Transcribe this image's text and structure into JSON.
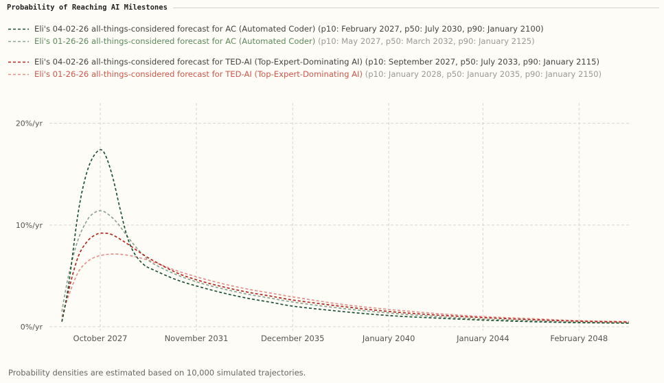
{
  "chart_data": {
    "type": "line",
    "title": "Probability of Reaching AI Milestones",
    "xlabel": "",
    "ylabel": "",
    "x_ticks": [
      {
        "label": "October 2027",
        "value": 2027.75
      },
      {
        "label": "November 2031",
        "value": 2031.83
      },
      {
        "label": "December 2035",
        "value": 2035.92
      },
      {
        "label": "January 2040",
        "value": 2040.0
      },
      {
        "label": "January 2044",
        "value": 2044.0
      },
      {
        "label": "February 2048",
        "value": 2048.08
      }
    ],
    "y_ticks": [
      {
        "label": "0%/yr",
        "value": 0
      },
      {
        "label": "10%/yr",
        "value": 10
      },
      {
        "label": "20%/yr",
        "value": 20
      }
    ],
    "xlim": [
      2026.0,
      2050.2
    ],
    "ylim": [
      0,
      22
    ],
    "grid": true,
    "legend_position": "top-left",
    "series": [
      {
        "name_main": "Eli's 04-02-26 all-things-considered forecast for AC (Automated Coder)",
        "name_detail": " (p10: February 2027, p50: July 2030, p90: January 2100)",
        "color": "#1f5133",
        "dash": "dashed",
        "x": [
          2026.12,
          2026.4,
          2026.8,
          2027.1,
          2027.4,
          2027.75,
          2028.0,
          2028.3,
          2028.6,
          2028.9,
          2029.2,
          2029.6,
          2030.0,
          2031.0,
          2032.0,
          2033.0,
          2034.0,
          2035.0,
          2036.0,
          2038.0,
          2040.0,
          2042.0,
          2044.0,
          2046.0,
          2048.0,
          2050.2
        ],
        "y": [
          0.5,
          4.0,
          11.0,
          14.5,
          16.5,
          17.4,
          16.7,
          14.5,
          11.5,
          8.8,
          7.2,
          6.1,
          5.6,
          4.6,
          3.9,
          3.3,
          2.8,
          2.4,
          2.0,
          1.5,
          1.1,
          0.85,
          0.65,
          0.5,
          0.4,
          0.35
        ]
      },
      {
        "name_main": "Eli's 01-26-26 all-things-considered forecast for AC (Automated Coder)",
        "name_detail": " (p10: May 2027, p50: March 2032, p90: January 2125)",
        "color": "#8ea28c",
        "dash": "dashed",
        "x": [
          2026.12,
          2026.4,
          2026.8,
          2027.2,
          2027.5,
          2027.75,
          2028.0,
          2028.4,
          2028.8,
          2029.2,
          2029.6,
          2030.0,
          2031.0,
          2032.0,
          2033.0,
          2034.0,
          2035.0,
          2036.0,
          2038.0,
          2040.0,
          2042.0,
          2044.0,
          2046.0,
          2048.0,
          2050.2
        ],
        "y": [
          1.5,
          5.0,
          8.5,
          10.5,
          11.2,
          11.4,
          11.2,
          10.4,
          9.2,
          8.0,
          7.0,
          6.2,
          5.1,
          4.3,
          3.7,
          3.2,
          2.8,
          2.4,
          1.8,
          1.35,
          1.0,
          0.75,
          0.6,
          0.45,
          0.35
        ]
      },
      {
        "name_main": "Eli's 04-02-26 all-things-considered forecast for TED-AI (Top-Expert-Dominating AI)",
        "name_detail": " (p10: September 2027, p50: July 2033, p90: January 2115)",
        "color": "#b0261e",
        "dash": "dashed",
        "x": [
          2026.12,
          2026.4,
          2026.8,
          2027.2,
          2027.6,
          2027.9,
          2028.2,
          2028.6,
          2029.0,
          2029.5,
          2030.0,
          2031.0,
          2032.0,
          2033.0,
          2034.0,
          2035.0,
          2036.0,
          2038.0,
          2040.0,
          2042.0,
          2044.0,
          2046.0,
          2048.0,
          2050.2
        ],
        "y": [
          0.5,
          3.5,
          6.8,
          8.4,
          9.1,
          9.2,
          9.1,
          8.6,
          8.0,
          7.2,
          6.5,
          5.3,
          4.5,
          3.9,
          3.4,
          3.0,
          2.6,
          2.0,
          1.5,
          1.15,
          0.9,
          0.7,
          0.55,
          0.45
        ]
      },
      {
        "name_main": "Eli's 01-26-26 all-things-considered forecast for TED-AI (Top-Expert-Dominating AI)",
        "name_detail": " (p10: January 2028, p50: January 2035, p90: January 2150)",
        "color": "#e3908a",
        "dash": "dashed",
        "x": [
          2026.12,
          2026.4,
          2026.8,
          2027.2,
          2027.6,
          2028.0,
          2028.3,
          2028.7,
          2029.2,
          2029.7,
          2030.2,
          2031.0,
          2032.0,
          2033.0,
          2034.0,
          2035.0,
          2036.0,
          2038.0,
          2040.0,
          2042.0,
          2044.0,
          2046.0,
          2048.0,
          2050.2
        ],
        "y": [
          1.0,
          3.0,
          5.3,
          6.4,
          6.9,
          7.1,
          7.15,
          7.1,
          6.9,
          6.6,
          6.2,
          5.5,
          4.8,
          4.2,
          3.7,
          3.3,
          2.9,
          2.2,
          1.7,
          1.3,
          1.0,
          0.8,
          0.6,
          0.5
        ]
      }
    ]
  },
  "footnote": "Probability densities are estimated based on 10,000 simulated trajectories."
}
